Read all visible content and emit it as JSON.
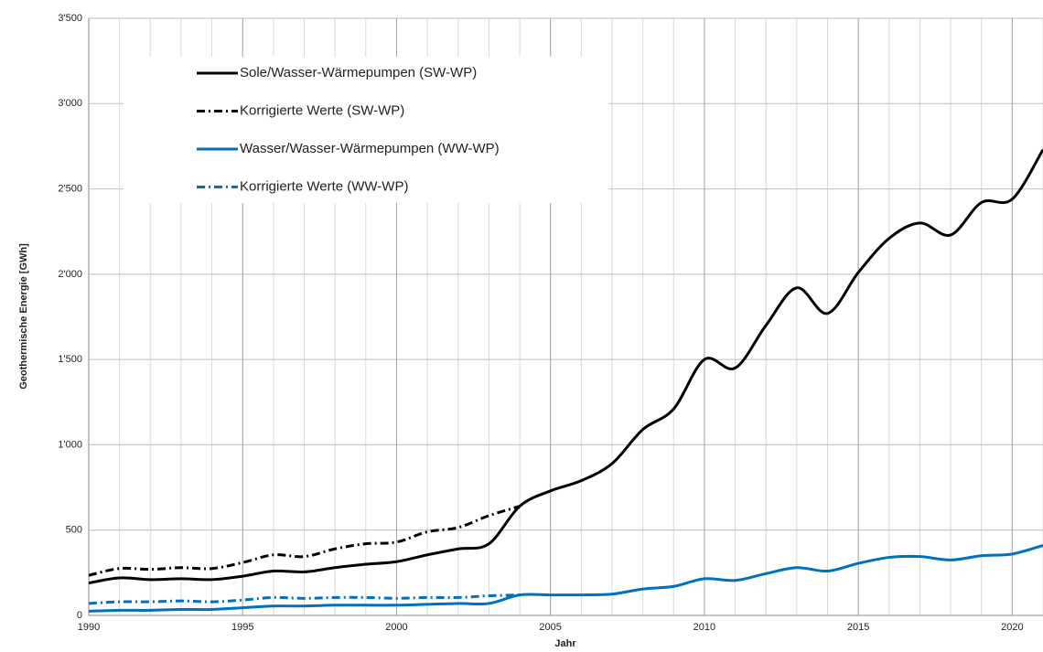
{
  "chart_data": {
    "type": "line",
    "xlabel": "Jahr",
    "ylabel": "Geothermische Energie [GWh]",
    "x": [
      1990,
      1991,
      1992,
      1993,
      1994,
      1995,
      1996,
      1997,
      1998,
      1999,
      2000,
      2001,
      2002,
      2003,
      2004,
      2005,
      2006,
      2007,
      2008,
      2009,
      2010,
      2011,
      2012,
      2013,
      2014,
      2015,
      2016,
      2017,
      2018,
      2019,
      2020,
      2021
    ],
    "series": [
      {
        "name": "Sole/Wasser-Wärmepumpen (SW-WP)",
        "color": "#000000",
        "dash": false,
        "values": [
          190,
          220,
          210,
          215,
          210,
          230,
          260,
          255,
          280,
          300,
          315,
          355,
          390,
          420,
          640,
          730,
          790,
          890,
          1090,
          1210,
          1500,
          1450,
          1700,
          1920,
          1770,
          2010,
          2210,
          2300,
          2230,
          2420,
          2440,
          2730
        ]
      },
      {
        "name": "Korrigierte Werte (SW-WP)",
        "color": "#000000",
        "dash": true,
        "values": [
          235,
          275,
          270,
          280,
          275,
          310,
          355,
          345,
          390,
          420,
          430,
          490,
          515,
          585,
          640,
          null,
          null,
          null,
          null,
          null,
          null,
          null,
          null,
          null,
          null,
          null,
          null,
          null,
          null,
          null,
          null,
          null
        ]
      },
      {
        "name": "Wasser/Wasser-Wärmepumpen (WW-WP)",
        "color": "#0070c0",
        "dash": false,
        "values": [
          25,
          30,
          30,
          35,
          35,
          45,
          55,
          55,
          60,
          60,
          60,
          65,
          70,
          70,
          120,
          120,
          120,
          125,
          155,
          170,
          215,
          205,
          245,
          280,
          260,
          305,
          340,
          345,
          325,
          350,
          360,
          410
        ]
      },
      {
        "name": "Korrigierte Werte (WW-WP)",
        "color": "#0070c0",
        "dash": true,
        "values": [
          70,
          80,
          80,
          85,
          80,
          90,
          105,
          100,
          105,
          105,
          100,
          105,
          105,
          115,
          120,
          null,
          null,
          null,
          null,
          null,
          null,
          null,
          null,
          null,
          null,
          null,
          null,
          null,
          null,
          null,
          null,
          null
        ]
      }
    ],
    "xlim": [
      1990,
      2021
    ],
    "xticks": [
      1990,
      1995,
      2000,
      2005,
      2010,
      2015,
      2020
    ],
    "ylim": [
      0,
      3500
    ],
    "yticks": [
      0,
      500,
      {
        "value": 1000,
        "label": "1'000"
      },
      {
        "value": 1500,
        "label": "1'500"
      },
      {
        "value": 2000,
        "label": "2'000"
      },
      {
        "value": 2500,
        "label": "2'500"
      },
      {
        "value": 3000,
        "label": "3'000"
      },
      {
        "value": 3500,
        "label": "3'500"
      }
    ],
    "grid": true,
    "legend": "upper left"
  }
}
